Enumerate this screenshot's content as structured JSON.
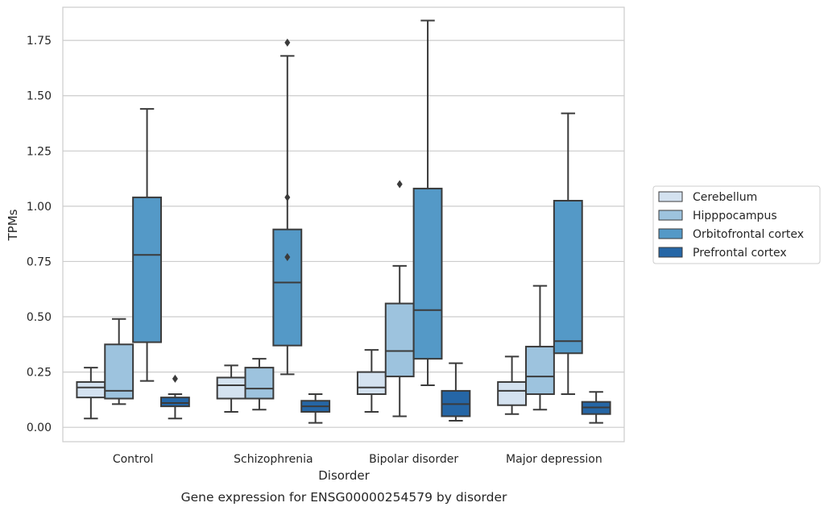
{
  "chart_data": {
    "type": "box",
    "caption": "Gene expression for ENSG00000254579 by disorder",
    "xlabel": "Disorder",
    "ylabel": "TPMs",
    "ylim": [
      -0.065,
      1.9
    ],
    "yticks": [
      0.0,
      0.25,
      0.5,
      0.75,
      1.0,
      1.25,
      1.5,
      1.75
    ],
    "ytick_labels": [
      "0.00",
      "0.25",
      "0.50",
      "0.75",
      "1.00",
      "1.25",
      "1.50",
      "1.75"
    ],
    "grid": "horizontal",
    "legend_position": "right",
    "categories": [
      "Control",
      "Schizophrenia",
      "Bipolar disorder",
      "Major depression"
    ],
    "series": [
      {
        "name": "Cerebellum",
        "color": "#d4e2f0",
        "boxes": [
          {
            "whislo": 0.04,
            "q1": 0.135,
            "med": 0.18,
            "q3": 0.205,
            "whishi": 0.27,
            "fliers": []
          },
          {
            "whislo": 0.07,
            "q1": 0.13,
            "med": 0.19,
            "q3": 0.225,
            "whishi": 0.28,
            "fliers": []
          },
          {
            "whislo": 0.07,
            "q1": 0.15,
            "med": 0.18,
            "q3": 0.25,
            "whishi": 0.35,
            "fliers": []
          },
          {
            "whislo": 0.06,
            "q1": 0.1,
            "med": 0.165,
            "q3": 0.205,
            "whishi": 0.32,
            "fliers": []
          }
        ]
      },
      {
        "name": "Hipppocampus",
        "color": "#9dc3de",
        "boxes": [
          {
            "whislo": 0.105,
            "q1": 0.13,
            "med": 0.165,
            "q3": 0.375,
            "whishi": 0.49,
            "fliers": []
          },
          {
            "whislo": 0.08,
            "q1": 0.13,
            "med": 0.175,
            "q3": 0.27,
            "whishi": 0.31,
            "fliers": []
          },
          {
            "whislo": 0.05,
            "q1": 0.23,
            "med": 0.345,
            "q3": 0.56,
            "whishi": 0.73,
            "fliers": [
              1.1
            ]
          },
          {
            "whislo": 0.08,
            "q1": 0.15,
            "med": 0.23,
            "q3": 0.365,
            "whishi": 0.64,
            "fliers": []
          }
        ]
      },
      {
        "name": "Orbitofrontal cortex",
        "color": "#5499c7",
        "boxes": [
          {
            "whislo": 0.21,
            "q1": 0.385,
            "med": 0.78,
            "q3": 1.04,
            "whishi": 1.44,
            "fliers": []
          },
          {
            "whislo": 0.24,
            "q1": 0.37,
            "med": 0.655,
            "q3": 0.895,
            "whishi": 1.68,
            "fliers": [
              0.77,
              1.04,
              1.74
            ]
          },
          {
            "whislo": 0.19,
            "q1": 0.31,
            "med": 0.53,
            "q3": 1.08,
            "whishi": 1.84,
            "fliers": []
          },
          {
            "whislo": 0.15,
            "q1": 0.335,
            "med": 0.39,
            "q3": 1.025,
            "whishi": 1.42,
            "fliers": []
          }
        ]
      },
      {
        "name": "Prefrontal cortex",
        "color": "#2566a6",
        "boxes": [
          {
            "whislo": 0.04,
            "q1": 0.095,
            "med": 0.11,
            "q3": 0.135,
            "whishi": 0.15,
            "fliers": [
              0.22
            ]
          },
          {
            "whislo": 0.02,
            "q1": 0.07,
            "med": 0.095,
            "q3": 0.12,
            "whishi": 0.15,
            "fliers": []
          },
          {
            "whislo": 0.03,
            "q1": 0.05,
            "med": 0.105,
            "q3": 0.165,
            "whishi": 0.29,
            "fliers": []
          },
          {
            "whislo": 0.02,
            "q1": 0.06,
            "med": 0.09,
            "q3": 0.115,
            "whishi": 0.16,
            "fliers": []
          }
        ]
      }
    ],
    "line_color": "#3b3b3b",
    "grid_color": "#cccccc",
    "spine_color": "#cccccc"
  }
}
